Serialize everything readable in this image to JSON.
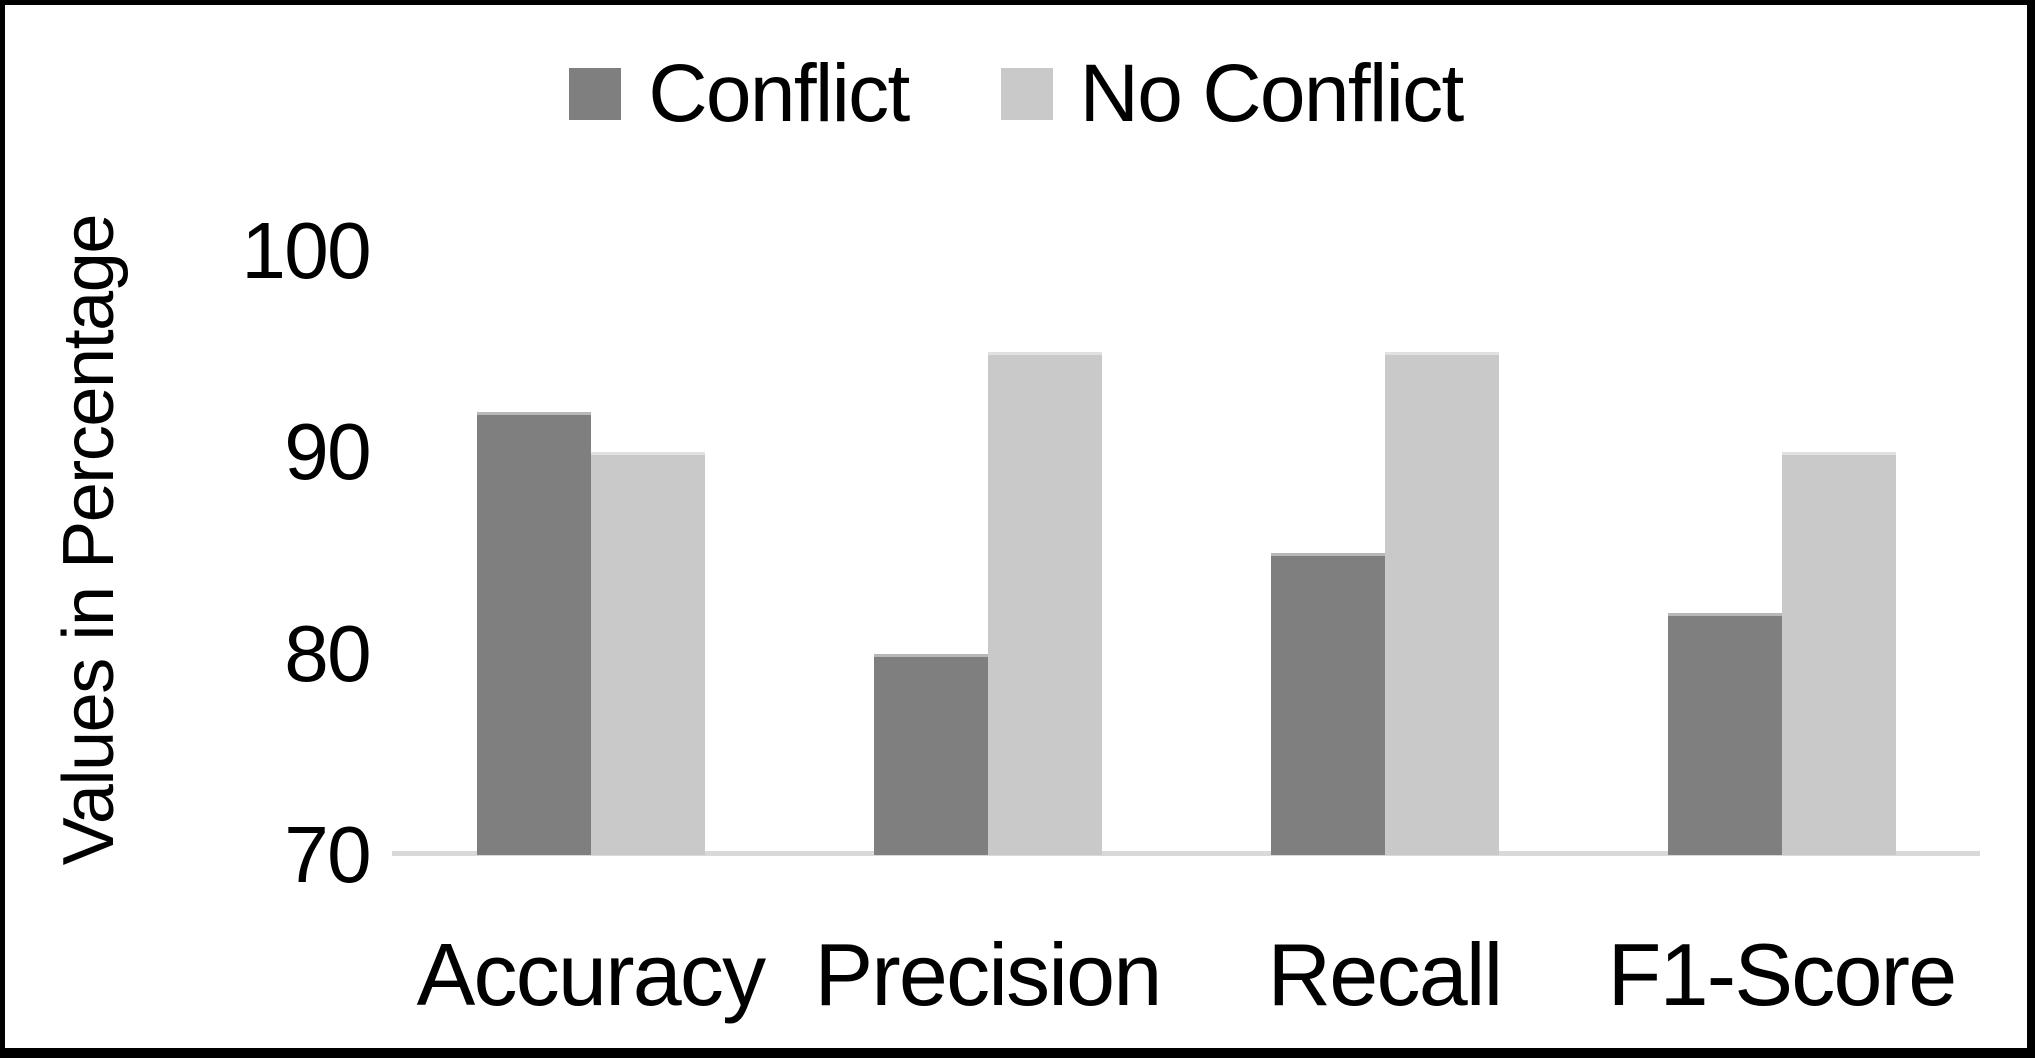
{
  "figure": {
    "background": "#ffffff",
    "border_color": "#000000",
    "text_color": "#000000"
  },
  "legend": {
    "items": [
      {
        "label": "Conflict",
        "color": "#7f7f7f"
      },
      {
        "label": "No Conflict",
        "color": "#c9c9c9"
      }
    ]
  },
  "chart_data": {
    "type": "bar",
    "categories": [
      "Accuracy",
      "Precision",
      "Recall",
      "F1-Score"
    ],
    "series": [
      {
        "name": "Conflict",
        "color": "#7f7f7f",
        "values": [
          92,
          80,
          85,
          82
        ]
      },
      {
        "name": "No Conflict",
        "color": "#c9c9c9",
        "values": [
          90,
          95,
          95,
          90
        ]
      }
    ],
    "ylabel": "Values in Percentage",
    "ylim": [
      70,
      100
    ],
    "yticks": [
      100,
      90,
      80,
      70
    ],
    "grid": false,
    "legend_position": "top-center",
    "axis_line_color": "#d9d9d9"
  }
}
